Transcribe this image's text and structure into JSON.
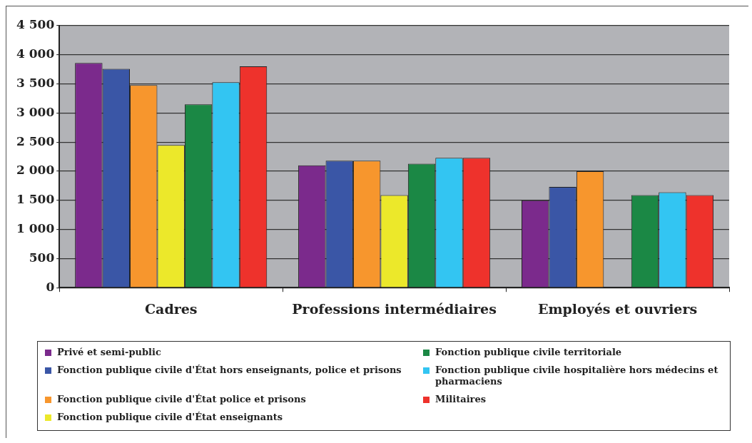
{
  "chart_data": {
    "type": "bar",
    "categories": [
      "Cadres",
      "Professions intermédiaires",
      "Employés et ouvriers"
    ],
    "series": [
      {
        "name": "Privé et semi-public",
        "color": "#7b2a8c",
        "values": [
          3860,
          2100,
          1500
        ]
      },
      {
        "name": "Fonction publique civile d'État hors enseignants, police et prisons",
        "color": "#3a56a6",
        "values": [
          3760,
          2180,
          1730
        ]
      },
      {
        "name": "Fonction publique civile d'État police et prisons",
        "color": "#f7962d",
        "values": [
          3480,
          2180,
          2000
        ]
      },
      {
        "name": "Fonction publique civile d'État enseignants",
        "color": "#ece82a",
        "values": [
          2450,
          1590,
          null
        ]
      },
      {
        "name": "Fonction publique civile territoriale",
        "color": "#1b8845",
        "values": [
          3150,
          2130,
          1590
        ]
      },
      {
        "name": "Fonction publique civile hospitalière hors médecins et pharmaciens",
        "color": "#33c5f2",
        "values": [
          3530,
          2230,
          1640
        ]
      },
      {
        "name": "Militaires",
        "color": "#ee322c",
        "values": [
          3800,
          2230,
          1590
        ]
      }
    ],
    "ylim": [
      0,
      4500
    ],
    "yticks": [
      0,
      500,
      {
        "value": 1000,
        "label": "1 000"
      },
      {
        "value": 1500,
        "label": "1 500"
      },
      {
        "value": 2000,
        "label": "2 000"
      },
      {
        "value": 2500,
        "label": "2 500"
      },
      {
        "value": 3000,
        "label": "3 000"
      },
      {
        "value": 3500,
        "label": "3 500"
      },
      {
        "value": 4000,
        "label": "4 000"
      },
      {
        "value": 4500,
        "label": "4 500"
      }
    ],
    "grid": "y",
    "legend": "bottom"
  }
}
